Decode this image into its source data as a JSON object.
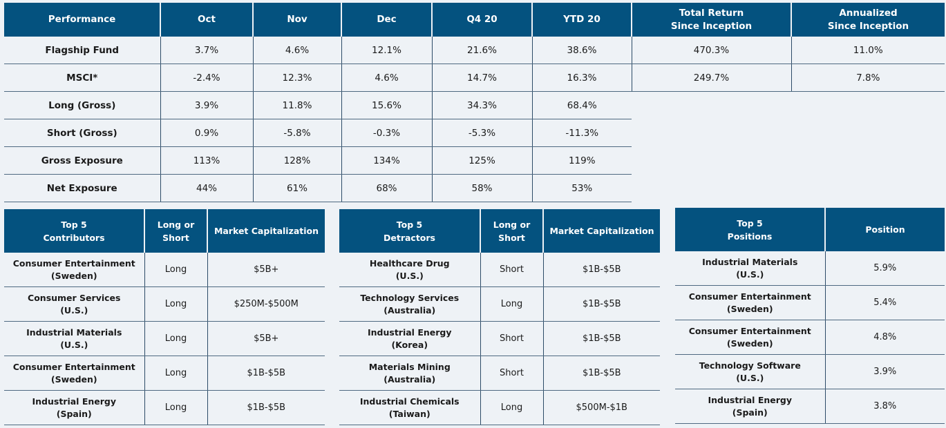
{
  "performance": {
    "headers": [
      "Performance",
      "Oct",
      "Nov",
      "Dec",
      "Q4 20",
      "YTD 20",
      "Total Return\nSince Inception",
      "Annualized\nSince Inception"
    ],
    "rows": [
      [
        "Flagship Fund",
        "3.7%",
        "4.6%",
        "12.1%",
        "21.6%",
        "38.6%",
        "470.3%",
        "11.0%"
      ],
      [
        "MSCI*",
        "-2.4%",
        "12.3%",
        "4.6%",
        "14.7%",
        "16.3%",
        "249.7%",
        "7.8%"
      ],
      [
        "Long (Gross)",
        "3.9%",
        "11.8%",
        "15.6%",
        "34.3%",
        "68.4%"
      ],
      [
        "Short (Gross)",
        "0.9%",
        "-5.8%",
        "-0.3%",
        "-5.3%",
        "-11.3%"
      ],
      [
        "Gross Exposure",
        "113%",
        "128%",
        "134%",
        "125%",
        "119%"
      ],
      [
        "Net Exposure",
        "44%",
        "61%",
        "68%",
        "58%",
        "53%"
      ]
    ]
  },
  "contributors": {
    "headers": [
      "Top 5\nContributors",
      "Long or\nShort",
      "Market Capitalization"
    ],
    "rows": [
      [
        "Consumer Entertainment\n(Sweden)",
        "Long",
        "$5B+"
      ],
      [
        "Consumer Services\n(U.S.)",
        "Long",
        "$250M-$500M"
      ],
      [
        "Industrial Materials\n(U.S.)",
        "Long",
        "$5B+"
      ],
      [
        "Consumer Entertainment\n(Sweden)",
        "Long",
        "$1B-$5B"
      ],
      [
        "Industrial Energy\n(Spain)",
        "Long",
        "$1B-$5B"
      ]
    ]
  },
  "detractors": {
    "headers": [
      "Top 5\nDetractors",
      "Long or\nShort",
      "Market Capitalization"
    ],
    "rows": [
      [
        "Healthcare Drug\n(U.S.)",
        "Short",
        "$1B-$5B"
      ],
      [
        "Technology Services\n(Australia)",
        "Long",
        "$1B-$5B"
      ],
      [
        "Industrial Energy\n(Korea)",
        "Short",
        "$1B-$5B"
      ],
      [
        "Materials Mining\n(Australia)",
        "Short",
        "$1B-$5B"
      ],
      [
        "Industrial Chemicals\n(Taiwan)",
        "Long",
        "$500M-$1B"
      ]
    ]
  },
  "positions": {
    "headers": [
      "Top 5\nPositions",
      "Position"
    ],
    "rows": [
      [
        "Industrial Materials\n(U.S.)",
        "5.9%"
      ],
      [
        "Consumer Entertainment\n(Sweden)",
        "5.4%"
      ],
      [
        "Consumer Entertainment\n(Sweden)",
        "4.8%"
      ],
      [
        "Technology Software\n(U.S.)",
        "3.9%"
      ],
      [
        "Industrial Energy\n(Spain)",
        "3.8%"
      ]
    ]
  }
}
